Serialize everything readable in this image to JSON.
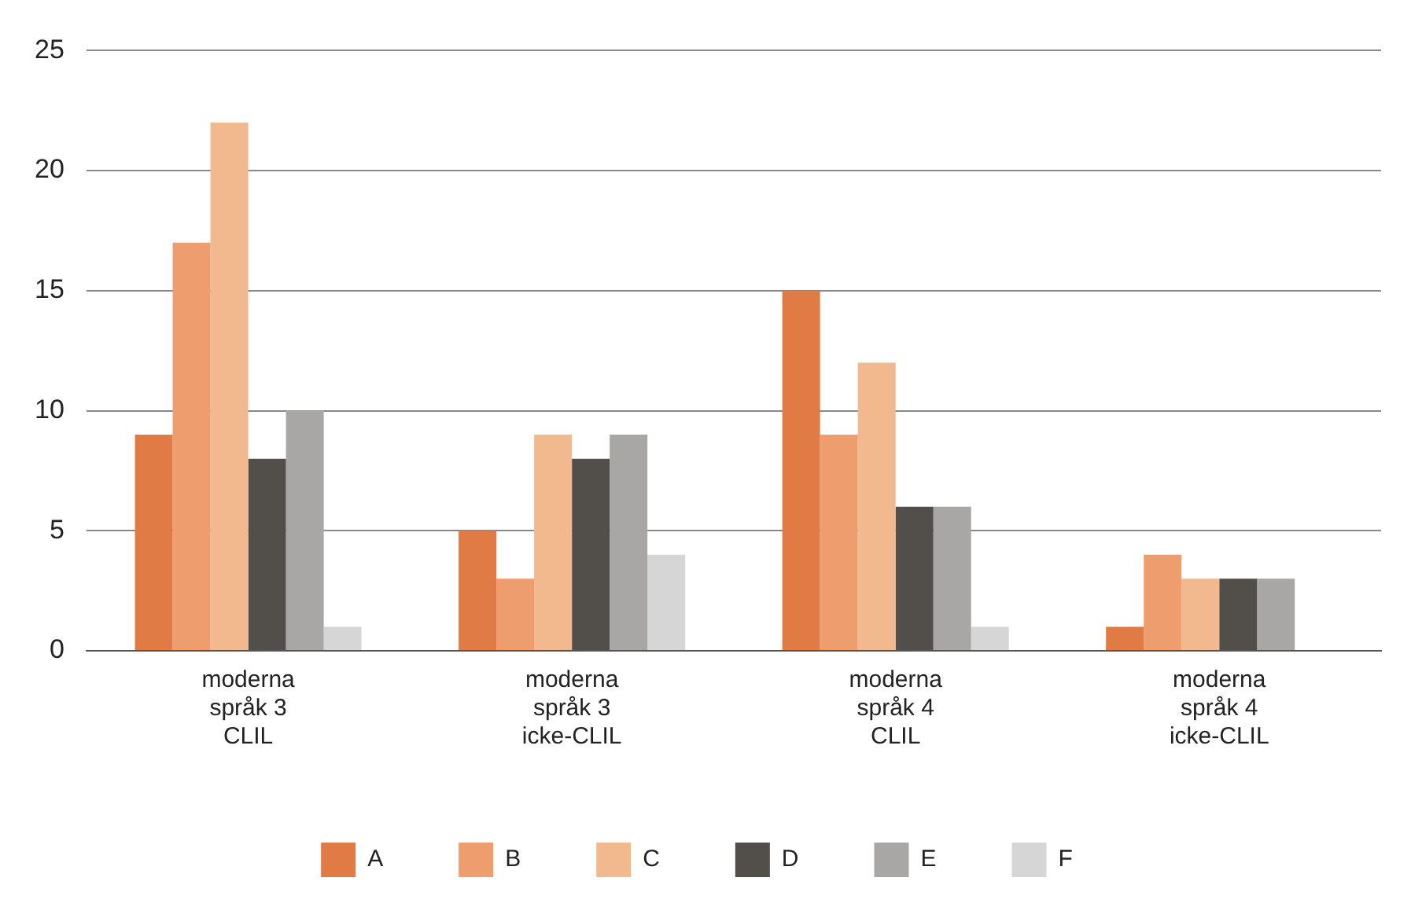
{
  "chart_data": {
    "type": "bar",
    "categories": [
      "moderna\nspråk 3\nCLIL",
      "moderna\nspråk 3\nicke-CLIL",
      "moderna\nspråk 4\nCLIL",
      "moderna\nspråk 4\nicke-CLIL"
    ],
    "series": [
      {
        "name": "A",
        "color": "#e07b45",
        "values": [
          9,
          5,
          15,
          1
        ]
      },
      {
        "name": "B",
        "color": "#ee9e6e",
        "values": [
          17,
          3,
          9,
          4
        ]
      },
      {
        "name": "C",
        "color": "#f2b98f",
        "values": [
          22,
          9,
          12,
          3
        ]
      },
      {
        "name": "D",
        "color": "#524f4b",
        "values": [
          8,
          8,
          6,
          3
        ]
      },
      {
        "name": "E",
        "color": "#a8a7a6",
        "values": [
          10,
          9,
          6,
          3
        ]
      },
      {
        "name": "F",
        "color": "#d6d6d6",
        "values": [
          1,
          4,
          1,
          0
        ]
      }
    ],
    "ylim": [
      0,
      25
    ],
    "yticks": [
      0,
      5,
      10,
      15,
      20,
      25
    ],
    "grid": "y",
    "legend": "bottom"
  }
}
